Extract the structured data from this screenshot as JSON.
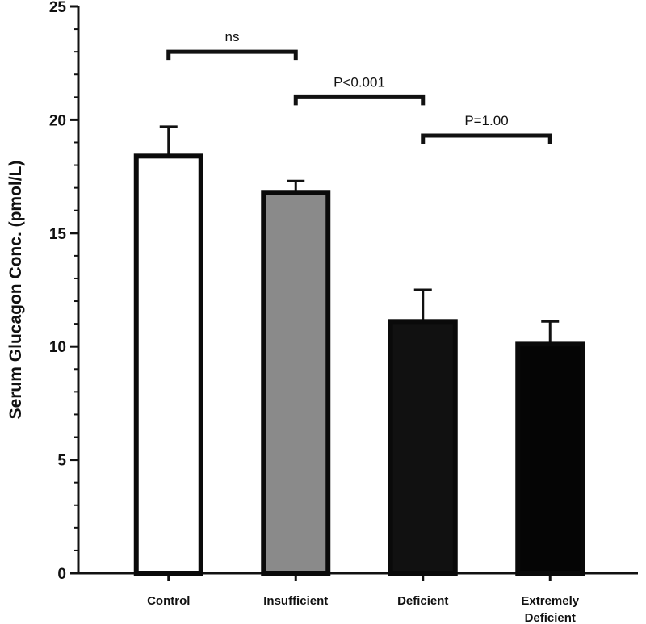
{
  "chart_data": {
    "type": "bar",
    "title": "",
    "xlabel": "",
    "ylabel": "Serum Glucagon Conc. (pmol/L)",
    "ylim": [
      0,
      25
    ],
    "yticks": [
      0,
      5,
      10,
      15,
      20,
      25
    ],
    "grid": false,
    "categories": [
      {
        "label": "Control",
        "lines": [
          "Control"
        ]
      },
      {
        "label": "Insufficient",
        "lines": [
          "Insufficient"
        ]
      },
      {
        "label": "Deficient",
        "lines": [
          "Deficient"
        ]
      },
      {
        "label": "Extremely Deficient",
        "lines": [
          "Extremely",
          "Deficient"
        ]
      }
    ],
    "values": [
      18.4,
      16.8,
      11.1,
      10.1
    ],
    "error_upper": [
      19.7,
      17.3,
      12.5,
      11.1
    ],
    "bar_fill_colors": [
      "#ffffff",
      "#8a8a8a",
      "#111111",
      "#050505"
    ],
    "significance": [
      {
        "from": 0,
        "to": 1,
        "label": "ns",
        "y": 23.0
      },
      {
        "from": 1,
        "to": 2,
        "label": "P<0.001",
        "y": 21.0
      },
      {
        "from": 2,
        "to": 3,
        "label": "P=1.00",
        "y": 19.3
      }
    ]
  }
}
